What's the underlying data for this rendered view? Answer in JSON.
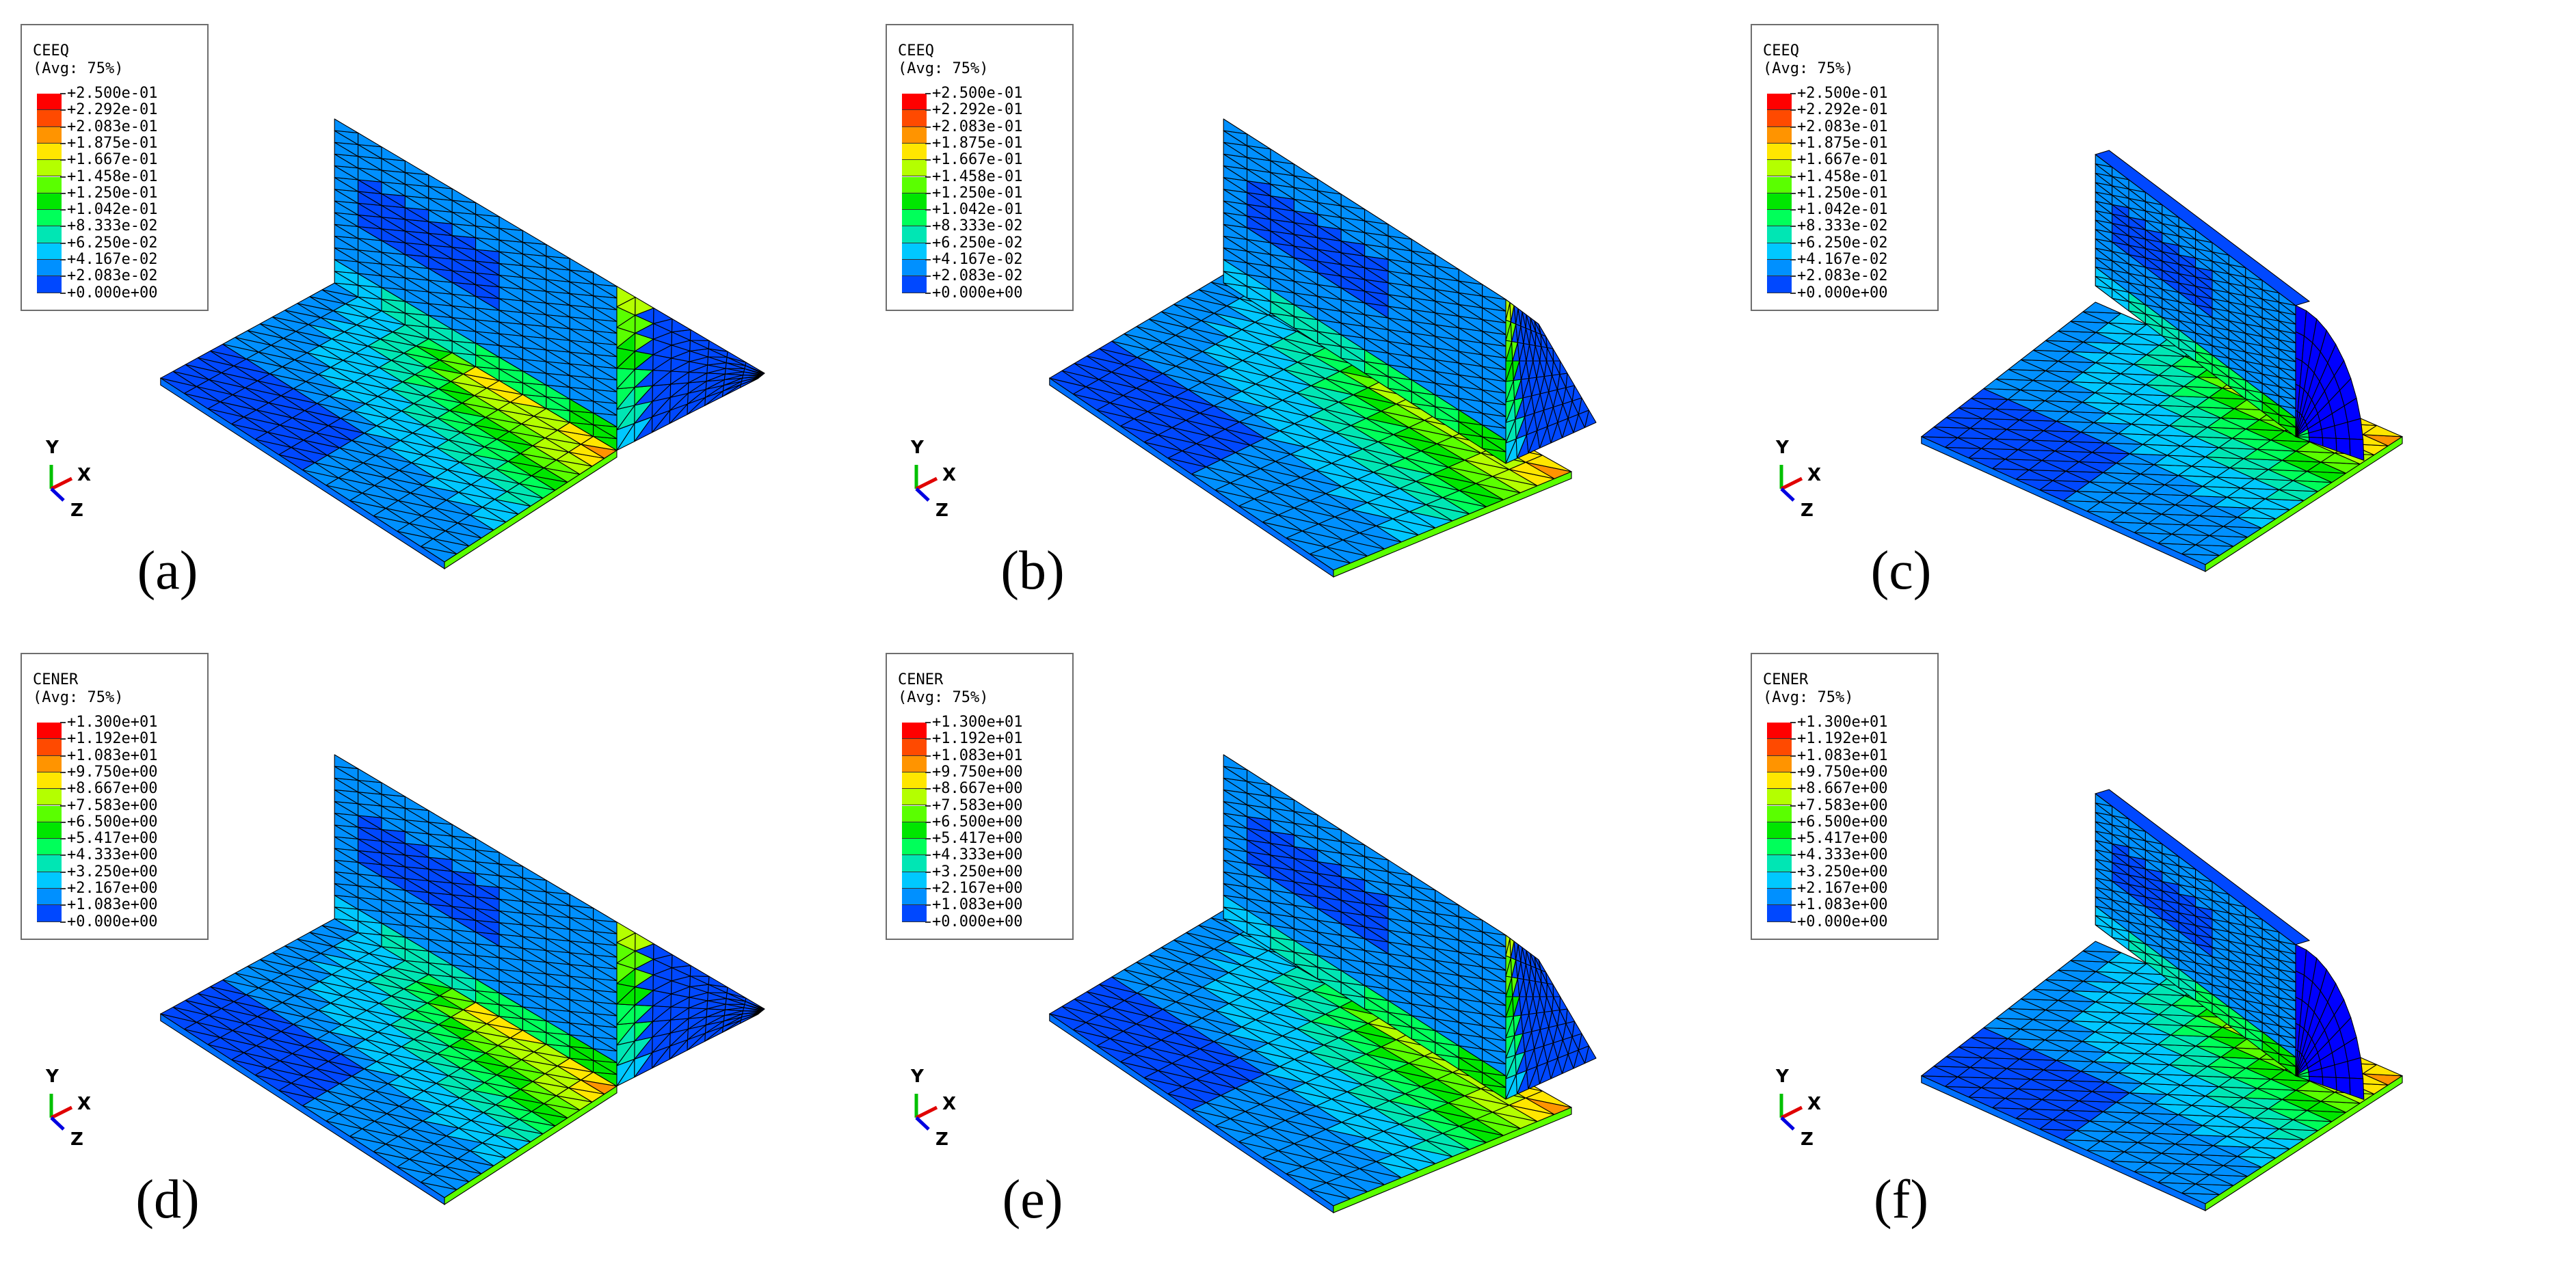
{
  "colors": {
    "contour": [
      "#0000ff",
      "#0048ff",
      "#0090ff",
      "#00c8ff",
      "#00e6b4",
      "#00ff5a",
      "#00e600",
      "#5aff00",
      "#b4ff00",
      "#ffe600",
      "#ff9400",
      "#ff4a00",
      "#ff0000"
    ],
    "background": "#ffffff",
    "mesh_line": "#000000"
  },
  "icons": {
    "triad": "xyz-axis-triad-icon"
  },
  "triad_labels": {
    "y": "Y",
    "x": "X",
    "z": "Z"
  },
  "legends": {
    "ceeq": {
      "title": "CEEQ",
      "avg": "(Avg: 75%)",
      "ticks": [
        "+2.500e-01",
        "+2.292e-01",
        "+2.083e-01",
        "+1.875e-01",
        "+1.667e-01",
        "+1.458e-01",
        "+1.250e-01",
        "+1.042e-01",
        "+8.333e-02",
        "+6.250e-02",
        "+4.167e-02",
        "+2.083e-02",
        "+0.000e+00"
      ]
    },
    "cener": {
      "title": "CENER",
      "avg": "(Avg: 75%)",
      "ticks": [
        "+1.300e+01",
        "+1.192e+01",
        "+1.083e+01",
        "+9.750e+00",
        "+8.667e+00",
        "+7.583e+00",
        "+6.500e+00",
        "+5.417e+00",
        "+4.333e+00",
        "+3.250e+00",
        "+2.167e+00",
        "+1.083e+00",
        "+0.000e+00"
      ]
    }
  },
  "panels": [
    {
      "caption": "(a)",
      "variable": "ceeq",
      "shape": "triangle"
    },
    {
      "caption": "(b)",
      "variable": "ceeq",
      "shape": "concave"
    },
    {
      "caption": "(c)",
      "variable": "ceeq",
      "shape": "round"
    },
    {
      "caption": "(d)",
      "variable": "cener",
      "shape": "triangle"
    },
    {
      "caption": "(e)",
      "variable": "cener",
      "shape": "concave"
    },
    {
      "caption": "(f)",
      "variable": "cener",
      "shape": "round"
    }
  ]
}
